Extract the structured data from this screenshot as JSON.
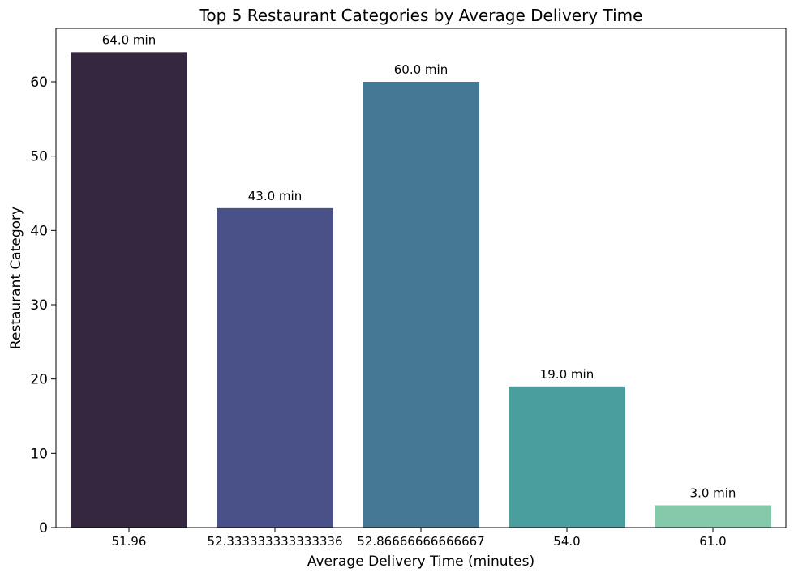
{
  "chart_data": {
    "type": "bar",
    "title": "Top 5 Restaurant Categories by Average Delivery Time",
    "xlabel": "Average Delivery Time (minutes)",
    "ylabel": "Restaurant Category",
    "categories": [
      "51.96",
      "52.333333333333336",
      "52.86666666666667",
      "54.0",
      "61.0"
    ],
    "values": [
      64.0,
      43.0,
      60.0,
      19.0,
      3.0
    ],
    "data_labels": [
      "64.0 min",
      "43.0 min",
      "60.0 min",
      "19.0 min",
      "3.0 min"
    ],
    "colors": [
      "#35273f",
      "#4a5188",
      "#457895",
      "#4a9e9e",
      "#85c9ab"
    ],
    "ylim": [
      0,
      67.2
    ],
    "yticks": [
      0,
      10,
      20,
      30,
      40,
      50,
      60
    ],
    "grid": false,
    "legend": "none"
  }
}
